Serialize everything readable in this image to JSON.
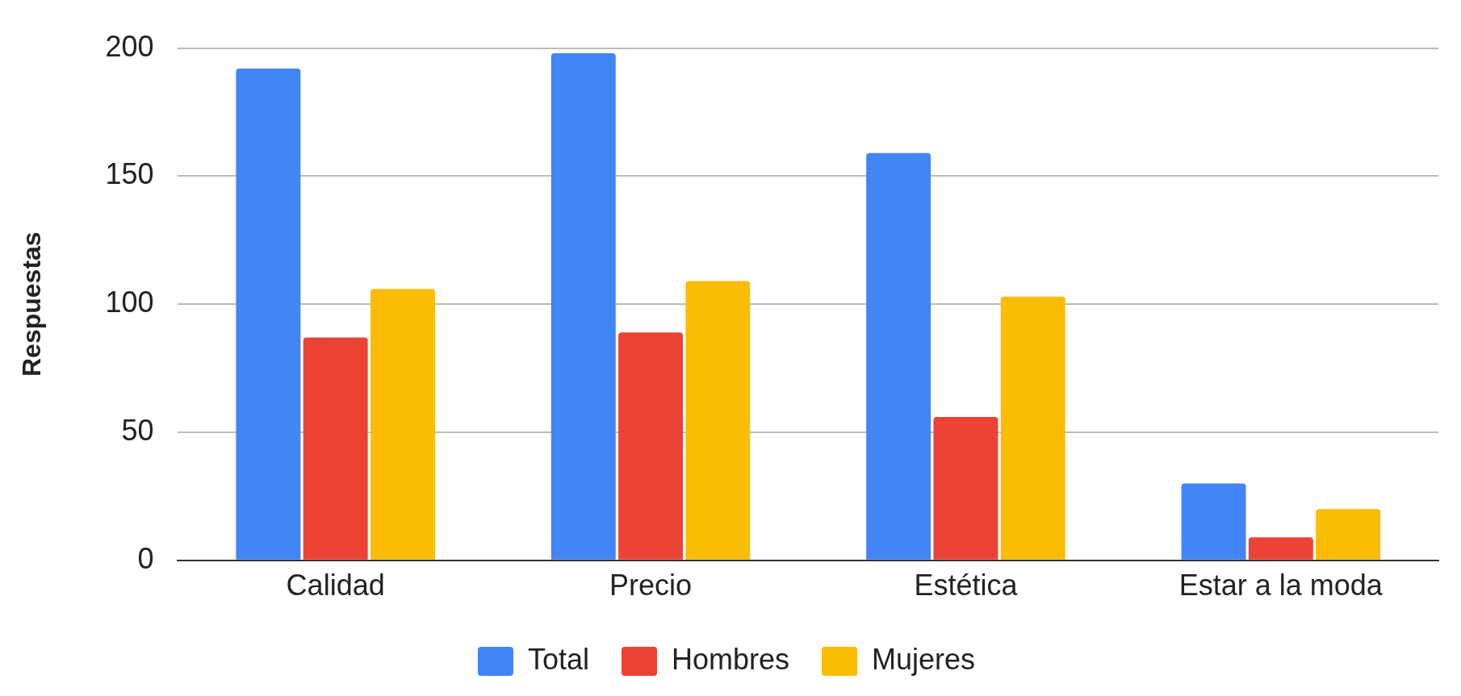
{
  "chart_data": {
    "type": "bar",
    "ylabel": "Respuestas",
    "categories": [
      "Calidad",
      "Precio",
      "Estética",
      "Estar a la moda"
    ],
    "series": [
      {
        "name": "Total",
        "color": "#4285f4",
        "values": [
          192,
          198,
          159,
          30
        ]
      },
      {
        "name": "Hombres",
        "color": "#ea4335",
        "values": [
          87,
          89,
          56,
          9
        ]
      },
      {
        "name": "Mujeres",
        "color": "#fbbc04",
        "values": [
          106,
          109,
          103,
          20
        ]
      }
    ],
    "ylim": [
      0,
      200
    ],
    "yticks": [
      0,
      50,
      100,
      150,
      200
    ],
    "grid": "y",
    "legend": "bottom"
  }
}
